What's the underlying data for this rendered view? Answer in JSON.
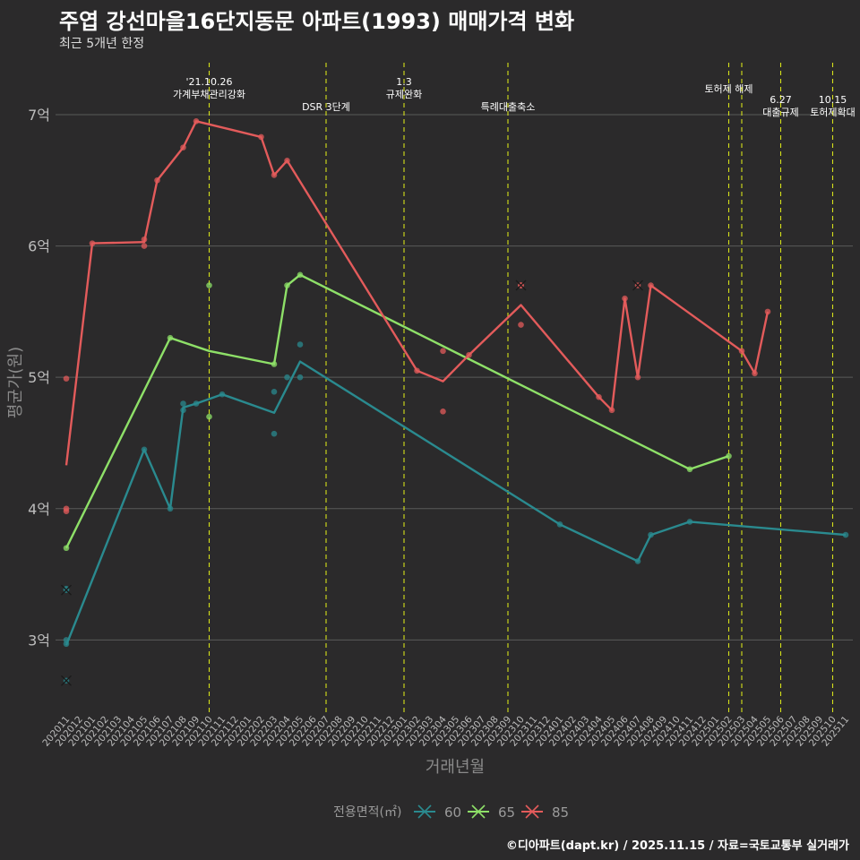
{
  "chart_data": {
    "type": "line",
    "title": "주엽 강선마을16단지동문 아파트(1993) 매매가격 변화",
    "subtitle": "최근 5개년 한정",
    "caption": "©디아파트(dapt.kr) / 2025.11.15 / 자료=국토교통부 실거래가",
    "xlabel": "거래년월",
    "ylabel": "평균가(원)",
    "ylim": [
      2.45,
      7.45
    ],
    "y_ticks": [
      3,
      4,
      5,
      6,
      7
    ],
    "y_tick_labels": [
      "3억",
      "4억",
      "5억",
      "6억",
      "7억"
    ],
    "categories": [
      "202011",
      "202012",
      "202101",
      "202102",
      "202103",
      "202104",
      "202105",
      "202106",
      "202107",
      "202108",
      "202109",
      "202110",
      "202111",
      "202112",
      "202201",
      "202202",
      "202203",
      "202204",
      "202205",
      "202206",
      "202207",
      "202208",
      "202209",
      "202210",
      "202211",
      "202212",
      "202301",
      "202302",
      "202303",
      "202304",
      "202305",
      "202306",
      "202307",
      "202308",
      "202309",
      "202310",
      "202311",
      "202312",
      "202401",
      "202402",
      "202403",
      "202404",
      "202405",
      "202406",
      "202407",
      "202408",
      "202409",
      "202410",
      "202411",
      "202412",
      "202501",
      "202502",
      "202503",
      "202504",
      "202505",
      "202506",
      "202507",
      "202508",
      "202509",
      "202510",
      "202511"
    ],
    "legend_title": "전용면적(㎡)",
    "series": [
      {
        "name": "60",
        "color": "#2a8a8f",
        "line": [
          [
            "202011",
            2.96
          ],
          [
            "202105",
            4.45
          ],
          [
            "202107",
            4.0
          ],
          [
            "202108",
            4.77
          ],
          [
            "202109",
            4.8
          ],
          [
            "202111",
            4.87
          ],
          [
            "202203",
            4.73
          ],
          [
            "202205",
            5.12
          ],
          [
            "202401",
            3.88
          ],
          [
            "202407",
            3.6
          ],
          [
            "202408",
            3.8
          ],
          [
            "202411",
            3.9
          ],
          [
            "202511",
            3.8
          ]
        ],
        "points": [
          [
            "202011",
            3.0
          ],
          [
            "202011",
            3.39
          ],
          [
            "202011",
            2.97
          ],
          [
            "202105",
            4.45
          ],
          [
            "202107",
            4.0
          ],
          [
            "202108",
            4.8
          ],
          [
            "202108",
            4.75
          ],
          [
            "202109",
            4.8
          ],
          [
            "202111",
            4.87
          ],
          [
            "202203",
            4.89
          ],
          [
            "202203",
            4.57
          ],
          [
            "202204",
            5.0
          ],
          [
            "202205",
            5.25
          ],
          [
            "202205",
            5.0
          ],
          [
            "202401",
            3.88
          ],
          [
            "202407",
            3.6
          ],
          [
            "202408",
            3.8
          ],
          [
            "202411",
            3.9
          ],
          [
            "202511",
            3.8
          ]
        ],
        "cancelled": [
          [
            "202011",
            3.38
          ],
          [
            "202011",
            2.69
          ]
        ]
      },
      {
        "name": "65",
        "color": "#8ee068",
        "line": [
          [
            "202011",
            3.7
          ],
          [
            "202107",
            5.3
          ],
          [
            "202110",
            5.2
          ],
          [
            "202203",
            5.1
          ],
          [
            "202204",
            5.7
          ],
          [
            "202205",
            5.78
          ],
          [
            "202411",
            4.3
          ],
          [
            "202502",
            4.4
          ]
        ],
        "points": [
          [
            "202011",
            3.7
          ],
          [
            "202107",
            5.3
          ],
          [
            "202110",
            5.7
          ],
          [
            "202110",
            4.7
          ],
          [
            "202203",
            5.1
          ],
          [
            "202204",
            5.7
          ],
          [
            "202205",
            5.78
          ],
          [
            "202411",
            4.3
          ],
          [
            "202502",
            4.4
          ]
        ],
        "cancelled": []
      },
      {
        "name": "85",
        "color": "#e35b5b",
        "line": [
          [
            "202011",
            4.33
          ],
          [
            "202101",
            6.02
          ],
          [
            "202105",
            6.03
          ],
          [
            "202106",
            6.5
          ],
          [
            "202108",
            6.75
          ],
          [
            "202109",
            6.95
          ],
          [
            "202202",
            6.83
          ],
          [
            "202203",
            6.54
          ],
          [
            "202204",
            6.65
          ],
          [
            "202302",
            5.05
          ],
          [
            "202304",
            4.97
          ],
          [
            "202306",
            5.17
          ],
          [
            "202310",
            5.55
          ],
          [
            "202404",
            4.85
          ],
          [
            "202405",
            4.75
          ],
          [
            "202406",
            5.6
          ],
          [
            "202407",
            5.0
          ],
          [
            "202408",
            5.7
          ],
          [
            "202503",
            5.2
          ],
          [
            "202504",
            5.03
          ],
          [
            "202505",
            5.5
          ]
        ],
        "points": [
          [
            "202011",
            4.99
          ],
          [
            "202011",
            4.0
          ],
          [
            "202011",
            3.98
          ],
          [
            "202101",
            6.02
          ],
          [
            "202105",
            6.05
          ],
          [
            "202105",
            6.0
          ],
          [
            "202106",
            6.5
          ],
          [
            "202108",
            6.75
          ],
          [
            "202109",
            6.95
          ],
          [
            "202202",
            6.83
          ],
          [
            "202203",
            6.54
          ],
          [
            "202204",
            6.65
          ],
          [
            "202302",
            5.05
          ],
          [
            "202304",
            5.2
          ],
          [
            "202304",
            4.74
          ],
          [
            "202306",
            5.17
          ],
          [
            "202310",
            5.7
          ],
          [
            "202310",
            5.4
          ],
          [
            "202404",
            4.85
          ],
          [
            "202405",
            4.75
          ],
          [
            "202406",
            5.6
          ],
          [
            "202407",
            5.0
          ],
          [
            "202408",
            5.7
          ],
          [
            "202503",
            5.2
          ],
          [
            "202504",
            5.03
          ],
          [
            "202505",
            5.5
          ]
        ],
        "cancelled": [
          [
            "202310",
            5.7
          ],
          [
            "202407",
            5.7
          ]
        ]
      }
    ],
    "events": [
      {
        "month": "202110",
        "lines": [
          "'21.10.26",
          "가계부채관리강화"
        ],
        "row": "top"
      },
      {
        "month": "202207",
        "lines": [
          "DSR 3단계"
        ],
        "row": "mid"
      },
      {
        "month": "202301",
        "lines": [
          "1.3",
          "규제완화"
        ],
        "row": "top"
      },
      {
        "month": "202309",
        "lines": [
          "특례대출축소"
        ],
        "row": "mid"
      },
      {
        "month": "202502",
        "lines": [
          "토허제 해제"
        ],
        "row": "up"
      },
      {
        "month": "202503",
        "lines": [],
        "row": "none"
      },
      {
        "month": "202506",
        "lines": [
          "6.27",
          "대출규제"
        ],
        "row": "low"
      },
      {
        "month": "202510",
        "lines": [
          "10.15",
          "토허제확대"
        ],
        "row": "low"
      }
    ],
    "grid": true,
    "legend_position": "bottom"
  }
}
